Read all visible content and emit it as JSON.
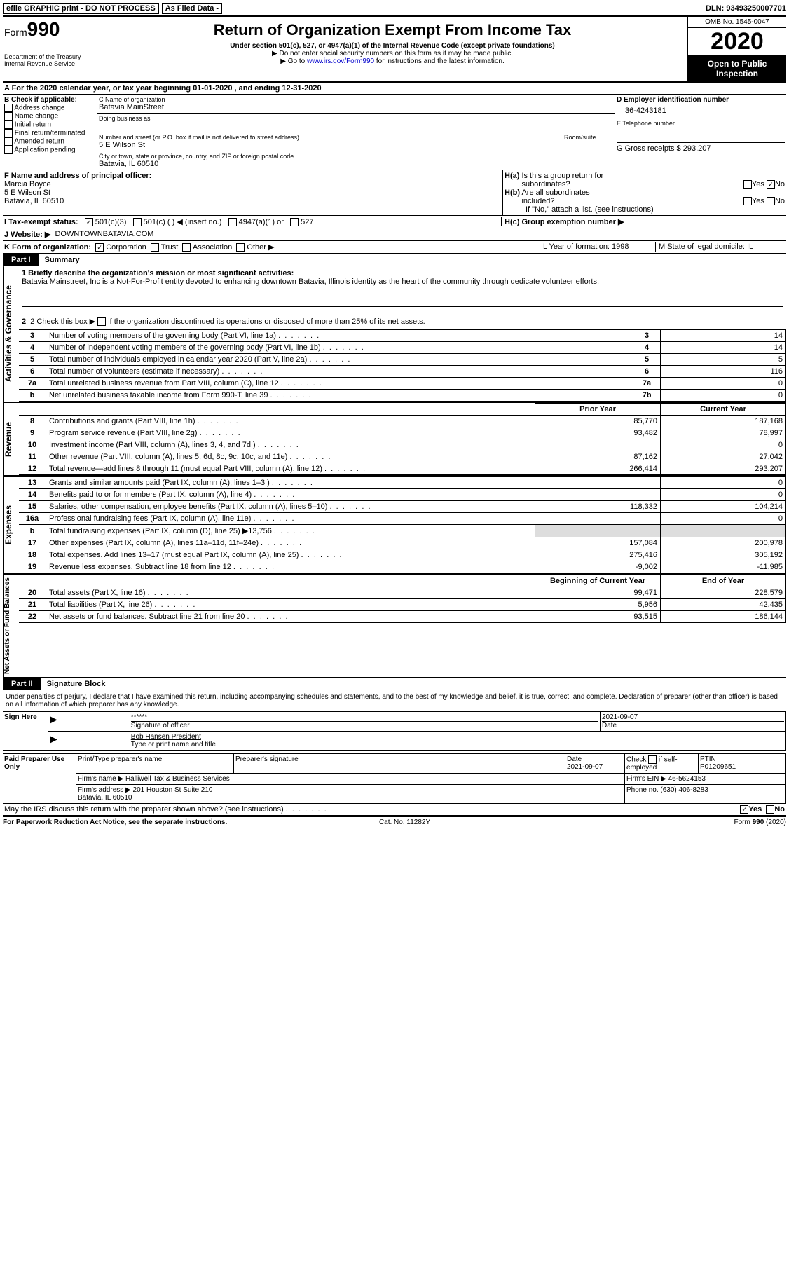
{
  "top": {
    "efile": "efile GRAPHIC print - DO NOT PROCESS",
    "asfiled": "As Filed Data -",
    "dln": "DLN: 93493250007701"
  },
  "header": {
    "form": "Form",
    "form_num": "990",
    "dept": "Department of the Treasury\nInternal Revenue Service",
    "title": "Return of Organization Exempt From Income Tax",
    "sub": "Under section 501(c), 527, or 4947(a)(1) of the Internal Revenue Code (except private foundations)",
    "line1": "▶ Do not enter social security numbers on this form as it may be made public.",
    "line2_pre": "▶ Go to ",
    "line2_link": "www.irs.gov/Form990",
    "line2_post": " for instructions and the latest information.",
    "omb": "OMB No. 1545-0047",
    "year": "2020",
    "open": "Open to Public Inspection"
  },
  "row_a": "A  For the 2020 calendar year, or tax year beginning 01-01-2020  , and ending 12-31-2020",
  "b": {
    "hdr": "B Check if applicable:",
    "items": [
      "Address change",
      "Name change",
      "Initial return",
      "Final return/terminated",
      "Amended return",
      "Application pending"
    ]
  },
  "c": {
    "name_lbl": "C Name of organization",
    "name": "Batavia MainStreet",
    "dba_lbl": "Doing business as",
    "addr_lbl": "Number and street (or P.O. box if mail is not delivered to street address)",
    "room_lbl": "Room/suite",
    "addr": "5 E Wilson St",
    "city_lbl": "City or town, state or province, country, and ZIP or foreign postal code",
    "city": "Batavia, IL  60510"
  },
  "d": {
    "hdr": "D Employer identification number",
    "ein": "36-4243181",
    "tel_lbl": "E Telephone number",
    "g": "G Gross receipts $ 293,207"
  },
  "f": {
    "lbl": "F  Name and address of principal officer:",
    "name": "Marcia Boyce",
    "addr1": "5 E Wilson St",
    "addr2": "Batavia, IL  60510"
  },
  "h": {
    "ha": "H(a) Is this a group return for subordinates?",
    "hb": "H(b) Are all subordinates included?",
    "hb2": "If \"No,\" attach a list. (see instructions)",
    "hc": "H(c) Group exemption number ▶",
    "yes": "Yes",
    "no": "No"
  },
  "i": {
    "lbl": "I  Tax-exempt status:",
    "c3": "501(c)(3)",
    "c": "501(c) (   ) ◀ (insert no.)",
    "a1": "4947(a)(1) or",
    "s527": "527"
  },
  "j": {
    "lbl": "J  Website: ▶",
    "val": "DOWNTOWNBATAVIA.COM"
  },
  "k": {
    "lbl": "K Form of organization:",
    "corp": "Corporation",
    "trust": "Trust",
    "assoc": "Association",
    "other": "Other ▶"
  },
  "l": {
    "lbl": "L Year of formation: 1998"
  },
  "m": {
    "lbl": "M State of legal domicile: IL"
  },
  "part1": {
    "label": "Part I",
    "title": "Summary"
  },
  "mission": {
    "q1": "1 Briefly describe the organization's mission or most significant activities:",
    "text": "Batavia Mainstreet, Inc is a Not-For-Profit entity devoted to enhancing downtown Batavia, Illinois identity as the heart of the community through dedicate volunteer efforts.",
    "q2_pre": "2  Check this box ▶ ",
    "q2_post": " if the organization discontinued its operations or disposed of more than 25% of its net assets."
  },
  "gov_lines": [
    {
      "n": "3",
      "t": "Number of voting members of the governing body (Part VI, line 1a)",
      "c": "3",
      "v": "14"
    },
    {
      "n": "4",
      "t": "Number of independent voting members of the governing body (Part VI, line 1b)",
      "c": "4",
      "v": "14"
    },
    {
      "n": "5",
      "t": "Total number of individuals employed in calendar year 2020 (Part V, line 2a)",
      "c": "5",
      "v": "5"
    },
    {
      "n": "6",
      "t": "Total number of volunteers (estimate if necessary)",
      "c": "6",
      "v": "116"
    },
    {
      "n": "7a",
      "t": "Total unrelated business revenue from Part VIII, column (C), line 12",
      "c": "7a",
      "v": "0"
    },
    {
      "n": "b",
      "t": "Net unrelated business taxable income from Form 990-T, line 39",
      "c": "7b",
      "v": "0"
    }
  ],
  "col_headers": {
    "prior": "Prior Year",
    "current": "Current Year",
    "beg": "Beginning of Current Year",
    "end": "End of Year"
  },
  "revenue": [
    {
      "n": "8",
      "t": "Contributions and grants (Part VIII, line 1h)",
      "p": "85,770",
      "c": "187,168"
    },
    {
      "n": "9",
      "t": "Program service revenue (Part VIII, line 2g)",
      "p": "93,482",
      "c": "78,997"
    },
    {
      "n": "10",
      "t": "Investment income (Part VIII, column (A), lines 3, 4, and 7d )",
      "p": "",
      "c": "0"
    },
    {
      "n": "11",
      "t": "Other revenue (Part VIII, column (A), lines 5, 6d, 8c, 9c, 10c, and 11e)",
      "p": "87,162",
      "c": "27,042"
    },
    {
      "n": "12",
      "t": "Total revenue—add lines 8 through 11 (must equal Part VIII, column (A), line 12)",
      "p": "266,414",
      "c": "293,207"
    }
  ],
  "expenses": [
    {
      "n": "13",
      "t": "Grants and similar amounts paid (Part IX, column (A), lines 1–3 )",
      "p": "",
      "c": "0"
    },
    {
      "n": "14",
      "t": "Benefits paid to or for members (Part IX, column (A), line 4)",
      "p": "",
      "c": "0"
    },
    {
      "n": "15",
      "t": "Salaries, other compensation, employee benefits (Part IX, column (A), lines 5–10)",
      "p": "118,332",
      "c": "104,214"
    },
    {
      "n": "16a",
      "t": "Professional fundraising fees (Part IX, column (A), line 11e)",
      "p": "",
      "c": "0"
    },
    {
      "n": "b",
      "t": "Total fundraising expenses (Part IX, column (D), line 25) ▶13,756",
      "p": "GREY",
      "c": "GREY"
    },
    {
      "n": "17",
      "t": "Other expenses (Part IX, column (A), lines 11a–11d, 11f–24e)",
      "p": "157,084",
      "c": "200,978"
    },
    {
      "n": "18",
      "t": "Total expenses. Add lines 13–17 (must equal Part IX, column (A), line 25)",
      "p": "275,416",
      "c": "305,192"
    },
    {
      "n": "19",
      "t": "Revenue less expenses. Subtract line 18 from line 12",
      "p": "-9,002",
      "c": "-11,985"
    }
  ],
  "net": [
    {
      "n": "20",
      "t": "Total assets (Part X, line 16)",
      "p": "99,471",
      "c": "228,579"
    },
    {
      "n": "21",
      "t": "Total liabilities (Part X, line 26)",
      "p": "5,956",
      "c": "42,435"
    },
    {
      "n": "22",
      "t": "Net assets or fund balances. Subtract line 21 from line 20",
      "p": "93,515",
      "c": "186,144"
    }
  ],
  "part2": {
    "label": "Part II",
    "title": "Signature Block",
    "decl": "Under penalties of perjury, I declare that I have examined this return, including accompanying schedules and statements, and to the best of my knowledge and belief, it is true, correct, and complete. Declaration of preparer (other than officer) is based on all information of which preparer has any knowledge."
  },
  "sign": {
    "here": "Sign Here",
    "stars": "******",
    "sig_lbl": "Signature of officer",
    "date": "2021-09-07",
    "date_lbl": "Date",
    "name": "Bob Hansen  President",
    "name_lbl": "Type or print name and title"
  },
  "paid": {
    "hdr": "Paid Preparer Use Only",
    "name_lbl": "Print/Type preparer's name",
    "sig_lbl": "Preparer's signature",
    "date_lbl": "Date",
    "date": "2021-09-07",
    "check_lbl": "Check",
    "check_post": "if self-employed",
    "ptin_lbl": "PTIN",
    "ptin": "P01209651",
    "firm_name_lbl": "Firm's name   ▶",
    "firm_name": "Halliwell Tax & Business Services",
    "firm_ein_lbl": "Firm's EIN ▶",
    "firm_ein": "46-5624153",
    "firm_addr_lbl": "Firm's address ▶",
    "firm_addr": "201 Houston St Suite 210\nBatavia, IL  60510",
    "phone_lbl": "Phone no.",
    "phone": "(630) 406-8283"
  },
  "discuss": "May the IRS discuss this return with the preparer shown above? (see instructions)",
  "footer": {
    "left": "For Paperwork Reduction Act Notice, see the separate instructions.",
    "mid": "Cat. No. 11282Y",
    "right": "Form 990 (2020)"
  },
  "vert": {
    "gov": "Activities & Governance",
    "rev": "Revenue",
    "exp": "Expenses",
    "net": "Net Assets or Fund Balances"
  }
}
